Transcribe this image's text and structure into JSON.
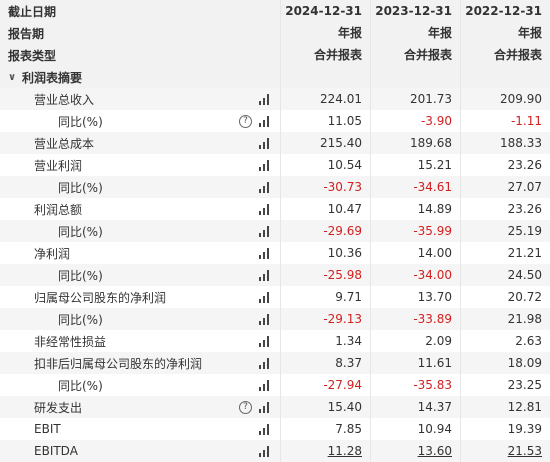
{
  "header": {
    "rows": [
      {
        "label": "截止日期",
        "values": [
          "2024-12-31",
          "2023-12-31",
          "2022-12-31"
        ]
      },
      {
        "label": "报告期",
        "values": [
          "年报",
          "年报",
          "年报"
        ]
      },
      {
        "label": "报表类型",
        "values": [
          "合并报表",
          "合并报表",
          "合并报表"
        ]
      }
    ]
  },
  "section": {
    "title": "利润表摘要",
    "icon": "chevron-down-icon"
  },
  "rows": [
    {
      "label": "营业总收入",
      "level": 1,
      "help": false,
      "values": [
        "224.01",
        "201.73",
        "209.90"
      ],
      "neg": [
        false,
        false,
        false
      ]
    },
    {
      "label": "同比(%)",
      "level": 2,
      "help": true,
      "values": [
        "11.05",
        "-3.90",
        "-1.11"
      ],
      "neg": [
        false,
        true,
        true
      ]
    },
    {
      "label": "营业总成本",
      "level": 1,
      "help": false,
      "values": [
        "215.40",
        "189.68",
        "188.33"
      ],
      "neg": [
        false,
        false,
        false
      ]
    },
    {
      "label": "营业利润",
      "level": 1,
      "help": false,
      "values": [
        "10.54",
        "15.21",
        "23.26"
      ],
      "neg": [
        false,
        false,
        false
      ]
    },
    {
      "label": "同比(%)",
      "level": 2,
      "help": false,
      "values": [
        "-30.73",
        "-34.61",
        "27.07"
      ],
      "neg": [
        true,
        true,
        false
      ]
    },
    {
      "label": "利润总额",
      "level": 1,
      "help": false,
      "values": [
        "10.47",
        "14.89",
        "23.26"
      ],
      "neg": [
        false,
        false,
        false
      ]
    },
    {
      "label": "同比(%)",
      "level": 2,
      "help": false,
      "values": [
        "-29.69",
        "-35.99",
        "25.19"
      ],
      "neg": [
        true,
        true,
        false
      ]
    },
    {
      "label": "净利润",
      "level": 1,
      "help": false,
      "values": [
        "10.36",
        "14.00",
        "21.21"
      ],
      "neg": [
        false,
        false,
        false
      ]
    },
    {
      "label": "同比(%)",
      "level": 2,
      "help": false,
      "values": [
        "-25.98",
        "-34.00",
        "24.50"
      ],
      "neg": [
        true,
        true,
        false
      ]
    },
    {
      "label": "归属母公司股东的净利润",
      "level": 1,
      "help": false,
      "values": [
        "9.71",
        "13.70",
        "20.72"
      ],
      "neg": [
        false,
        false,
        false
      ]
    },
    {
      "label": "同比(%)",
      "level": 2,
      "help": false,
      "values": [
        "-29.13",
        "-33.89",
        "21.98"
      ],
      "neg": [
        true,
        true,
        false
      ]
    },
    {
      "label": "非经常性损益",
      "level": 1,
      "help": false,
      "values": [
        "1.34",
        "2.09",
        "2.63"
      ],
      "neg": [
        false,
        false,
        false
      ]
    },
    {
      "label": "扣非后归属母公司股东的净利润",
      "level": 1,
      "help": false,
      "values": [
        "8.37",
        "11.61",
        "18.09"
      ],
      "neg": [
        false,
        false,
        false
      ]
    },
    {
      "label": "同比(%)",
      "level": 2,
      "help": false,
      "values": [
        "-27.94",
        "-35.83",
        "23.25"
      ],
      "neg": [
        true,
        true,
        false
      ]
    },
    {
      "label": "研发支出",
      "level": 1,
      "help": true,
      "values": [
        "15.40",
        "14.37",
        "12.81"
      ],
      "neg": [
        false,
        false,
        false
      ]
    },
    {
      "label": "EBIT",
      "level": 1,
      "help": false,
      "values": [
        "7.85",
        "10.94",
        "19.39"
      ],
      "neg": [
        false,
        false,
        false
      ]
    },
    {
      "label": "EBITDA",
      "level": 1,
      "help": false,
      "values": [
        "11.28",
        "13.60",
        "21.53"
      ],
      "neg": [
        false,
        false,
        false
      ],
      "underline": true
    }
  ],
  "colors": {
    "negative": "#d11f1f",
    "header_bg": "#f2f2f2",
    "stripe_bg": "#f5f5f5"
  },
  "icons": {
    "chart": "bar-chart-icon",
    "help": "question-circle-icon"
  }
}
